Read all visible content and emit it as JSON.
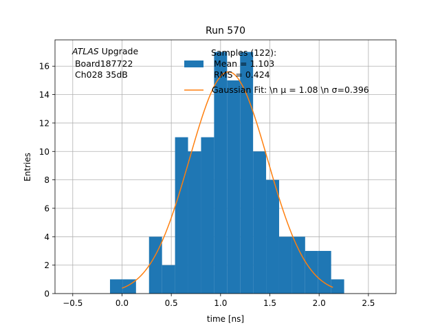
{
  "chart_data": {
    "type": "bar",
    "title": "Run 570",
    "xlabel": "time [ns]",
    "ylabel": "Entries",
    "xlim": [
      -0.68,
      2.78
    ],
    "ylim": [
      0,
      17.85
    ],
    "grid": true,
    "x_ticks": [
      -0.5,
      0.0,
      0.5,
      1.0,
      1.5,
      2.0,
      2.5
    ],
    "x_tick_labels": [
      "−0.5",
      "0.0",
      "0.5",
      "1.0",
      "1.5",
      "2.0",
      "2.5"
    ],
    "y_ticks": [
      0,
      2,
      4,
      6,
      8,
      10,
      12,
      14,
      16
    ],
    "y_tick_labels": [
      "0",
      "2",
      "4",
      "6",
      "8",
      "10",
      "12",
      "14",
      "16"
    ],
    "bin_edges": [
      -0.122,
      0.01,
      0.142,
      0.274,
      0.406,
      0.538,
      0.67,
      0.802,
      0.934,
      1.066,
      1.198,
      1.33,
      1.462,
      1.594,
      1.726,
      1.858,
      1.99,
      2.122,
      2.254
    ],
    "values": [
      1,
      1,
      0,
      4,
      2,
      11,
      10,
      11,
      17,
      15,
      17,
      10,
      8,
      4,
      4,
      3,
      3,
      1
    ],
    "fit": {
      "name": "Gaussian Fit",
      "mu": 1.08,
      "sigma": 0.396,
      "amplitude": 15.6,
      "x_range": [
        0.0,
        2.14
      ]
    },
    "colors": {
      "bars": "#1f77b4",
      "fit": "#ff7f0e",
      "grid": "#b0b0b0"
    },
    "annotation": {
      "line1_italic": "ATLAS",
      "line1_rest": " Upgrade",
      "line2": " Board187722",
      "line3": " Ch028 35dB"
    },
    "legend": {
      "placement": "top-right",
      "hist_label_lines": [
        "Samples (122):",
        "Mean = 1.103",
        "RMS = 0.424"
      ],
      "fit_label": "Gaussian Fit: \\n μ = 1.08 \\n σ=0.396"
    }
  }
}
